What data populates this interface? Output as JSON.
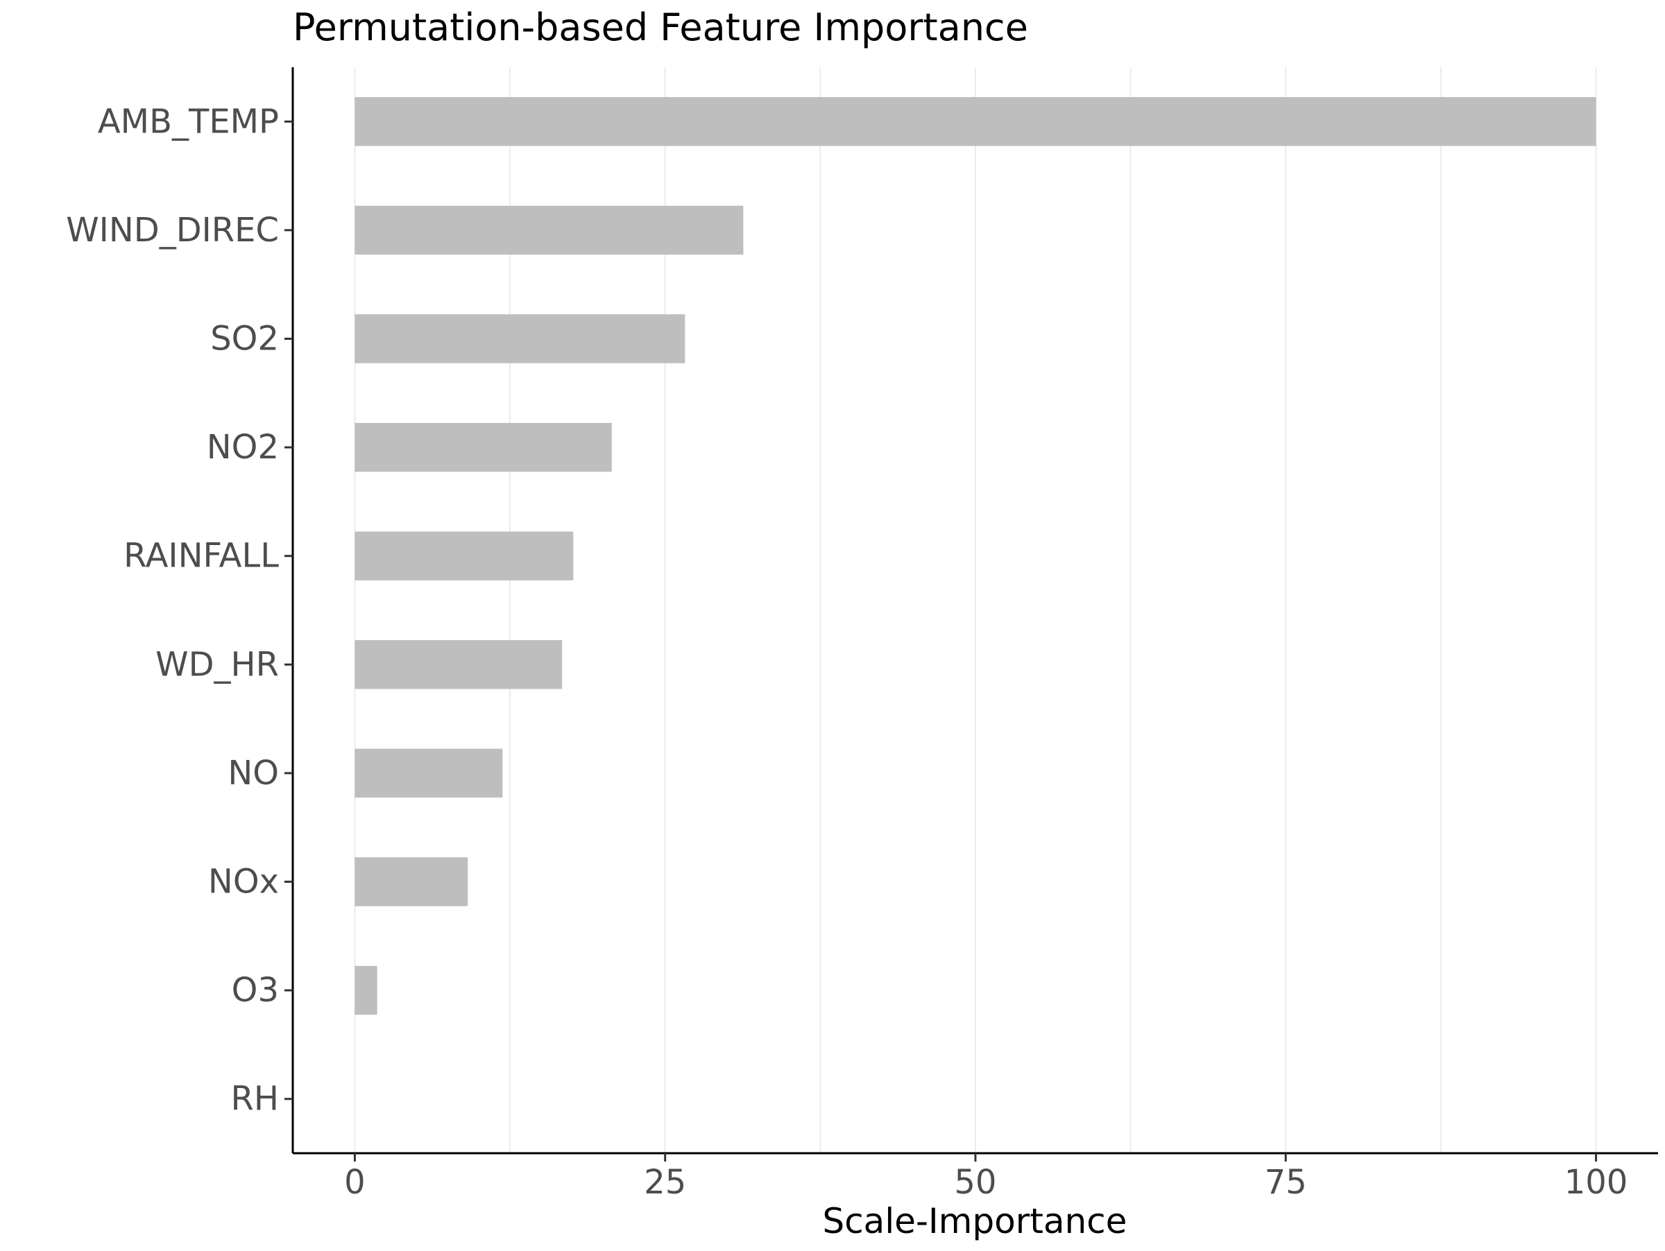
{
  "chart_data": {
    "type": "bar",
    "orientation": "horizontal",
    "title": "Permutation-based Feature Importance",
    "xlabel": "Scale-Importance",
    "ylabel": "",
    "categories": [
      "AMB_TEMP",
      "WIND_DIREC",
      "SO2",
      "NO2",
      "RAINFALL",
      "WD_HR",
      "NO",
      "NOx",
      "O3",
      "RH"
    ],
    "values": [
      100,
      31.3,
      26.6,
      20.7,
      17.6,
      16.7,
      11.9,
      9.1,
      1.8,
      0
    ],
    "xlim": [
      -5,
      105
    ],
    "xticks": [
      0,
      25,
      50,
      75,
      100
    ],
    "xtick_labels": [
      "0",
      "25",
      "50",
      "75",
      "100"
    ],
    "grid": "vertical major and minor",
    "legend": "none",
    "colors": {
      "bar": "#bebebe",
      "grid": "#ebebeb",
      "axis": "#000000",
      "tick_label": "#4d4d4d",
      "title": "#000000"
    }
  }
}
